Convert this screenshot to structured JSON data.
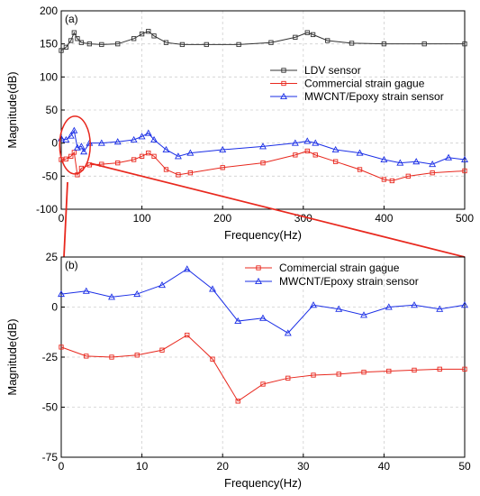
{
  "chart_data": [
    {
      "type": "line",
      "panel_label": "(a)",
      "xlabel": "Frequency(Hz)",
      "ylabel": "Magnitude(dB)",
      "xlim": [
        0,
        500
      ],
      "ylim": [
        -100,
        200
      ],
      "xticks": [
        0,
        100,
        200,
        300,
        400,
        500
      ],
      "yticks": [
        -100,
        -50,
        0,
        50,
        100,
        150,
        200
      ],
      "grid": true,
      "legend_position": "right",
      "annotation": "ellipse highlighting 0–50 Hz region, zoomed in panel (b)",
      "series": [
        {
          "name": "LDV sensor",
          "color": "#333333",
          "marker": "square",
          "x": [
            0,
            6,
            12,
            16,
            20,
            25,
            35,
            50,
            70,
            90,
            100,
            108,
            115,
            130,
            150,
            180,
            220,
            260,
            290,
            305,
            312,
            330,
            360,
            400,
            450,
            500
          ],
          "y": [
            140,
            145,
            155,
            167,
            158,
            152,
            150,
            149,
            150,
            158,
            165,
            169,
            162,
            152,
            149,
            149,
            149,
            152,
            160,
            167,
            164,
            155,
            151,
            150,
            150,
            150
          ]
        },
        {
          "name": "Commercial strain gague",
          "color": "#e8281e",
          "marker": "square",
          "x": [
            0,
            6,
            12,
            16,
            20,
            25,
            35,
            50,
            70,
            90,
            100,
            108,
            115,
            130,
            145,
            160,
            200,
            250,
            290,
            305,
            315,
            340,
            370,
            400,
            410,
            430,
            460,
            500
          ],
          "y": [
            -25,
            -24,
            -20,
            -14,
            -48,
            -38,
            -33,
            -32,
            -30,
            -25,
            -20,
            -15,
            -20,
            -40,
            -48,
            -45,
            -37,
            -30,
            -18,
            -12,
            -18,
            -28,
            -40,
            -55,
            -57,
            -50,
            -45,
            -42
          ]
        },
        {
          "name": "MWCNT/Epoxy strain sensor",
          "color": "#1a2ee6",
          "marker": "triangle",
          "x": [
            0,
            6,
            12,
            16,
            20,
            25,
            28,
            35,
            50,
            70,
            90,
            100,
            108,
            115,
            130,
            145,
            160,
            200,
            250,
            290,
            305,
            315,
            340,
            370,
            400,
            420,
            440,
            460,
            480,
            500
          ],
          "y": [
            7,
            5,
            11,
            19,
            -7,
            -5,
            -13,
            0,
            0,
            2,
            5,
            10,
            15,
            5,
            -10,
            -20,
            -15,
            -10,
            -5,
            0,
            3,
            0,
            -10,
            -15,
            -25,
            -30,
            -28,
            -32,
            -22,
            -25
          ]
        }
      ]
    },
    {
      "type": "line",
      "panel_label": "(b)",
      "xlabel": "Frequency(Hz)",
      "ylabel": "Magnitude(dB)",
      "xlim": [
        0,
        50
      ],
      "ylim": [
        -75,
        25
      ],
      "xticks": [
        0,
        10,
        20,
        30,
        40,
        50
      ],
      "yticks": [
        -75,
        -50,
        -25,
        0,
        25
      ],
      "grid": true,
      "legend_position": "top-right",
      "series": [
        {
          "name": "Commercial strain gague",
          "color": "#e8281e",
          "marker": "square",
          "x": [
            0,
            3.1,
            6.25,
            9.4,
            12.5,
            15.6,
            18.75,
            21.9,
            25,
            28.1,
            31.25,
            34.4,
            37.5,
            40.6,
            43.75,
            46.9,
            50
          ],
          "y": [
            -20,
            -24.5,
            -25,
            -24,
            -21.5,
            -14,
            -26,
            -47,
            -38.5,
            -35.5,
            -34,
            -33.5,
            -32.5,
            -32,
            -31.5,
            -31,
            -31
          ]
        },
        {
          "name": "MWCNT/Epoxy strain sensor",
          "color": "#1a2ee6",
          "marker": "triangle",
          "x": [
            0,
            3.1,
            6.25,
            9.4,
            12.5,
            15.6,
            18.75,
            21.9,
            25,
            28.1,
            31.25,
            34.4,
            37.5,
            40.6,
            43.75,
            46.9,
            50
          ],
          "y": [
            6.5,
            8,
            5,
            6.5,
            11,
            19,
            9,
            -7,
            -5.5,
            -13,
            1,
            -1,
            -4,
            0,
            1,
            -1,
            1
          ]
        }
      ]
    }
  ]
}
